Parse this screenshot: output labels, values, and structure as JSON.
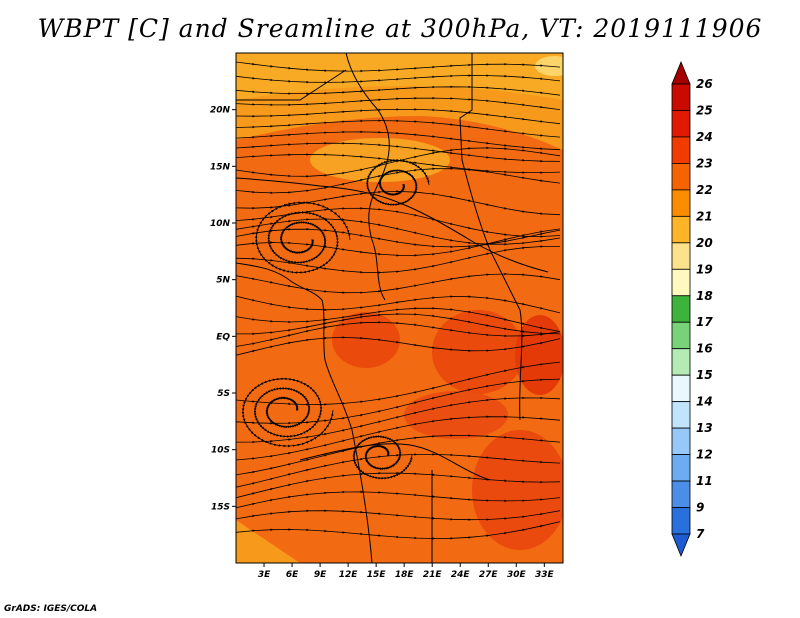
{
  "title": "WBPT [C] and Sreamline at 300hPa, VT: 2019111906",
  "credit": "GrADS: IGES/COLA",
  "map": {
    "lon_range": [
      0,
      35
    ],
    "lat_range": [
      -20,
      25
    ],
    "lon_ticks": [
      "3E",
      "6E",
      "9E",
      "12E",
      "15E",
      "18E",
      "21E",
      "24E",
      "27E",
      "30E",
      "33E"
    ],
    "lon_values": [
      3,
      6,
      9,
      12,
      15,
      18,
      21,
      24,
      27,
      30,
      33
    ],
    "lat_ticks": [
      "20N",
      "15N",
      "10N",
      "5N",
      "EQ",
      "5S",
      "10S",
      "15S"
    ],
    "lat_values": [
      20,
      15,
      10,
      5,
      0,
      -5,
      -10,
      -15
    ]
  },
  "colorbar": {
    "labels": [
      "26",
      "25",
      "24",
      "23",
      "22",
      "21",
      "20",
      "19",
      "18",
      "17",
      "16",
      "15",
      "14",
      "13",
      "12",
      "11",
      "9",
      "7"
    ],
    "colors": [
      "#a50000",
      "#c80a00",
      "#e11900",
      "#f03c00",
      "#f56400",
      "#fa8c00",
      "#fcb428",
      "#fde28c",
      "#fff9c0",
      "#3cb43c",
      "#78d278",
      "#b4eab4",
      "#e8f8fc",
      "#c0e4fc",
      "#96c8f8",
      "#6eacf2",
      "#4a8ee8",
      "#2870dc",
      "#1e5ad2"
    ]
  }
}
